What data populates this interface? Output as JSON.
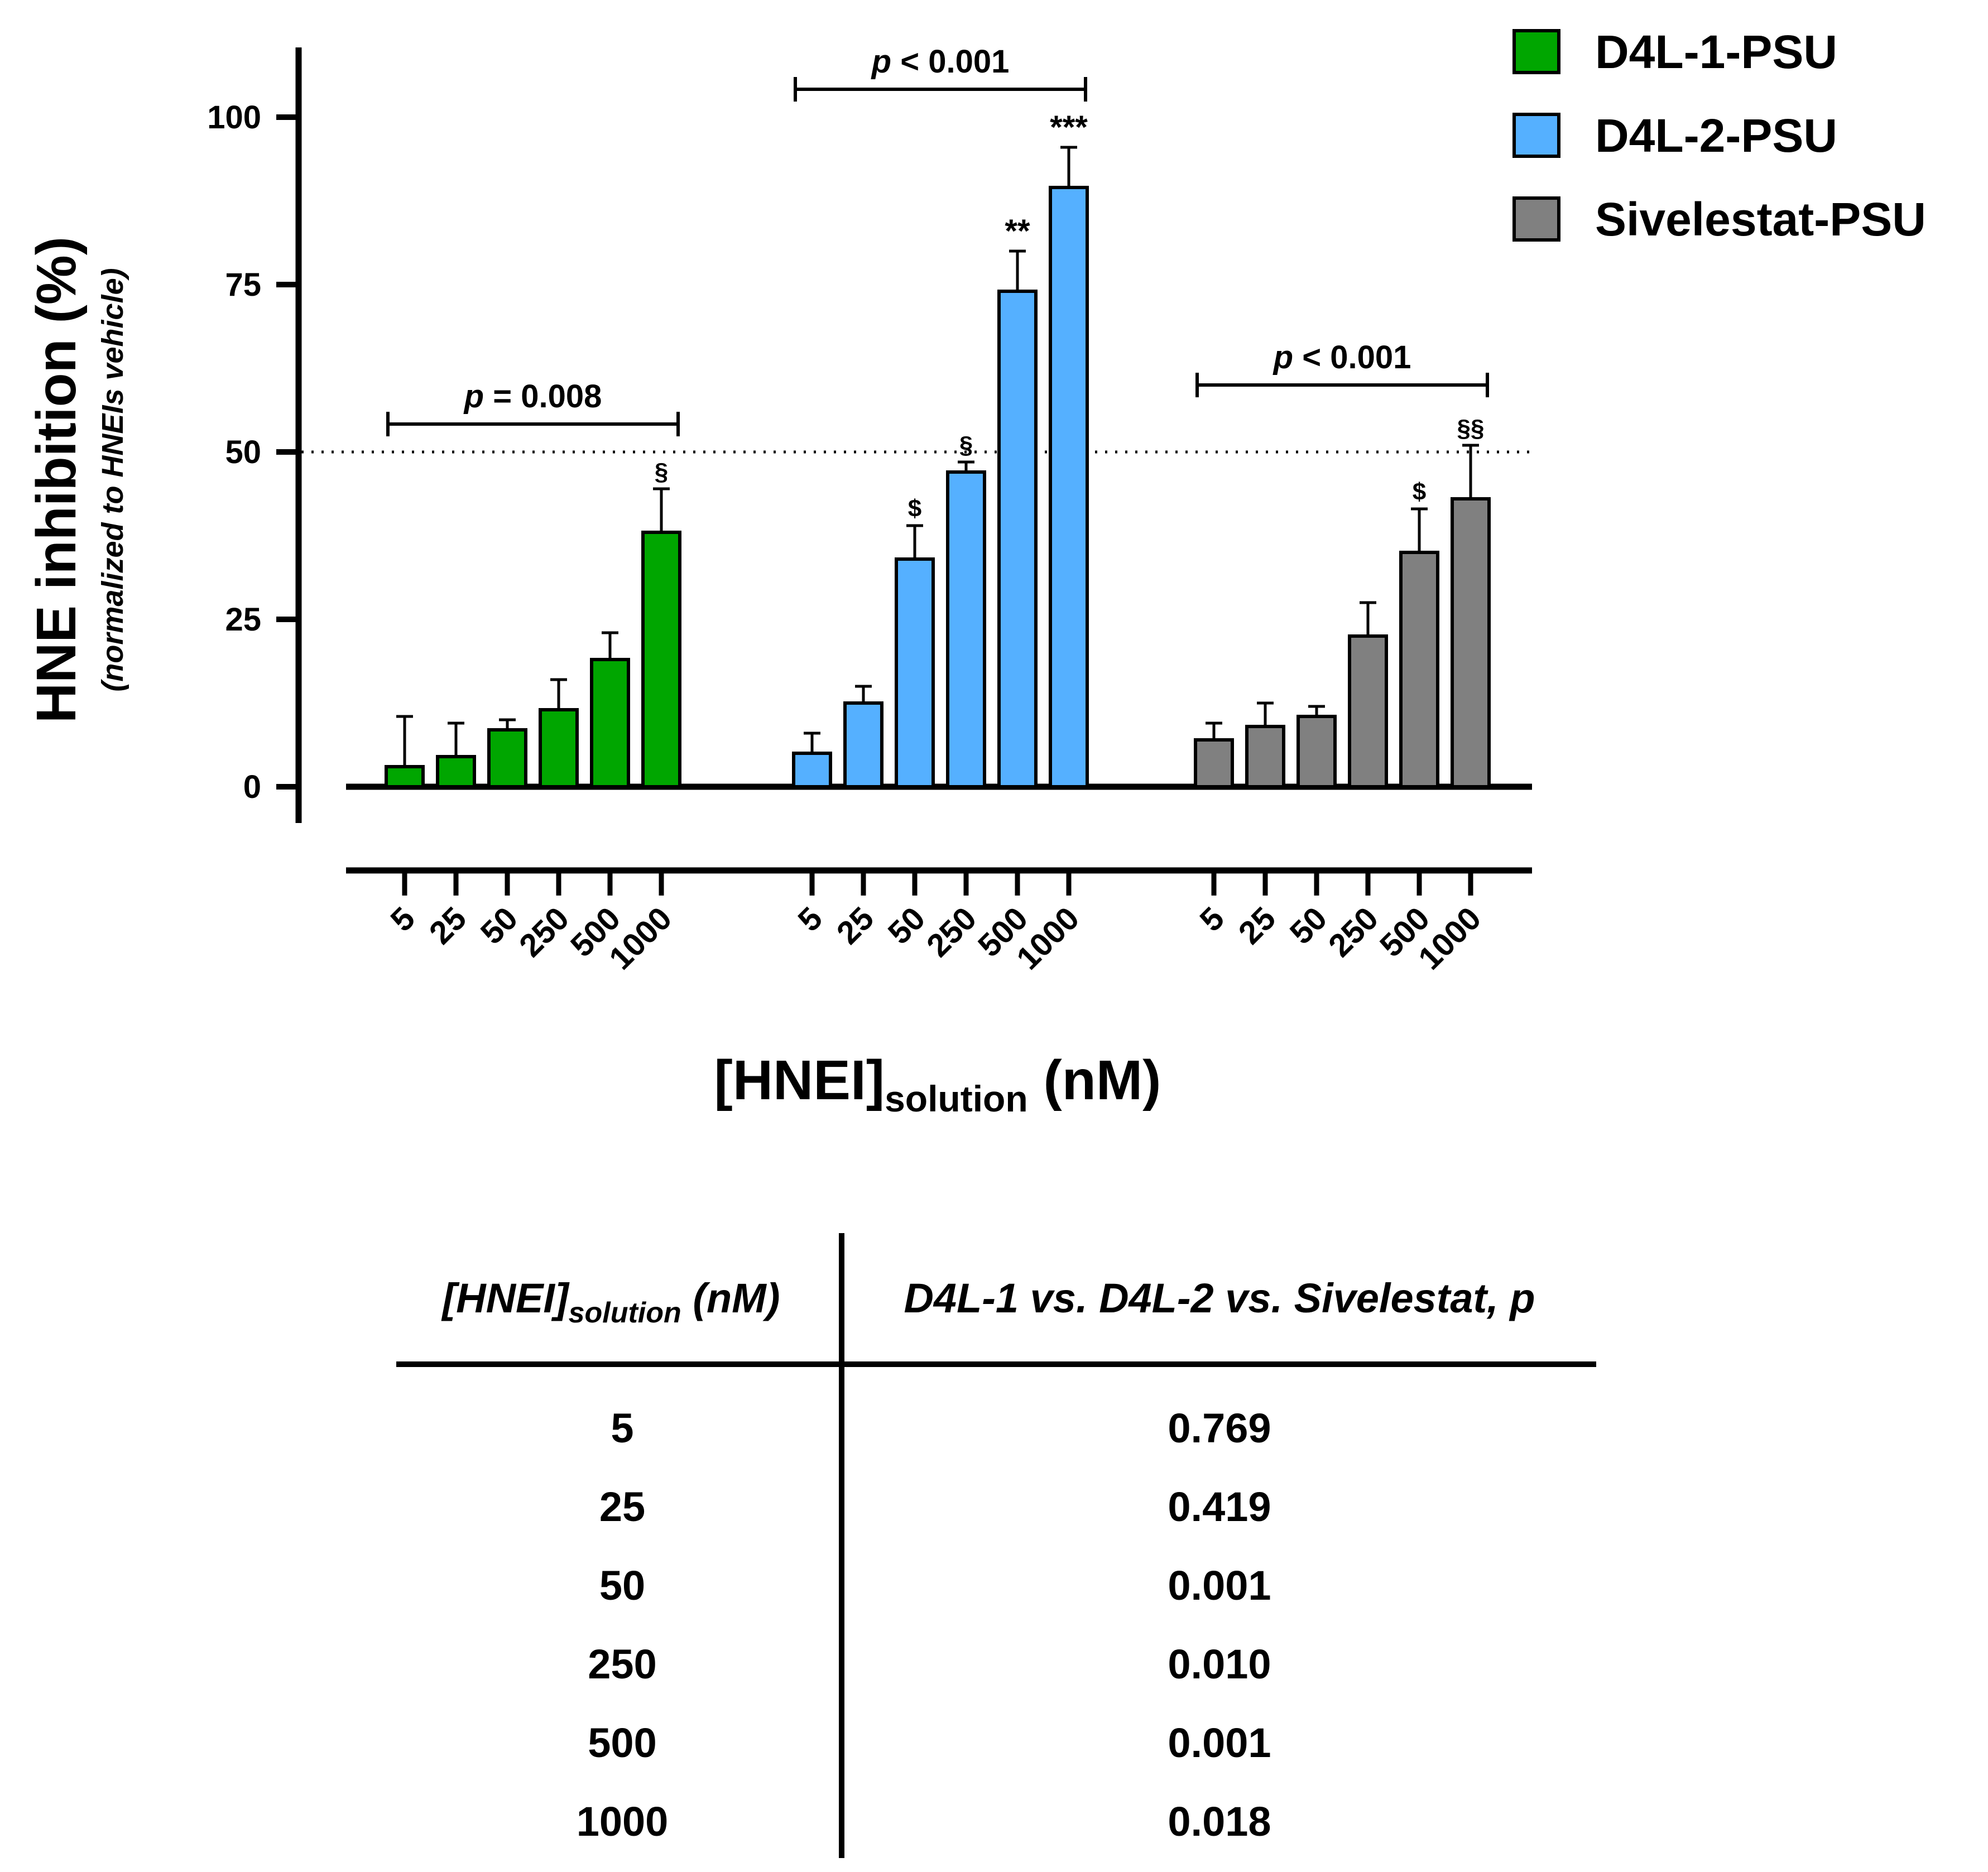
{
  "chart_data": {
    "type": "bar",
    "ylabel": "HNE inhibition (%)",
    "ylabel_sub": "(normalized to HNEIs vehicle)",
    "xlabel_main": "[HNEI]",
    "xlabel_sub": "solution",
    "xlabel_unit": " (nM)",
    "ylim": [
      0,
      110
    ],
    "yticks": [
      0,
      25,
      50,
      75,
      100
    ],
    "reference_line": 50,
    "concentrations": [
      "5",
      "25",
      "50",
      "250",
      "500",
      "1000"
    ],
    "series": [
      {
        "name": "D4L-1-PSU",
        "color": "#00A600",
        "values": [
          3,
          4.5,
          8.5,
          11.5,
          19,
          38
        ],
        "errors": [
          7.5,
          5,
          1.5,
          4.5,
          4,
          6.5
        ],
        "annotations": [
          "",
          "",
          "",
          "",
          "",
          "§"
        ],
        "bracket_p": "p",
        "bracket_text": " = 0.008"
      },
      {
        "name": "D4L-2-PSU",
        "color": "#55B0FF",
        "values": [
          5,
          12.5,
          34,
          47,
          74,
          89.5
        ],
        "errors": [
          3,
          2.5,
          5,
          1.5,
          6,
          6
        ],
        "annotations": [
          "",
          "",
          "$",
          "§",
          "**",
          "***"
        ],
        "bracket_p": "p",
        "bracket_text": " < 0.001"
      },
      {
        "name": "Sivelestat-PSU",
        "color": "#808080",
        "values": [
          7,
          9,
          10.5,
          22.5,
          35,
          43
        ],
        "errors": [
          2.5,
          3.5,
          1.5,
          5,
          6.5,
          8
        ],
        "annotations": [
          "",
          "",
          "",
          "",
          "$",
          "§§"
        ],
        "bracket_p": "p",
        "bracket_text": " < 0.001"
      }
    ]
  },
  "table": {
    "header_col1_main": "[HNEI]",
    "header_col1_sub": "solution",
    "header_col1_unit": " (nM)",
    "header_col2": "D4L-1 vs. D4L-2 vs. Sivelestat, p",
    "rows": [
      {
        "concentration": "5",
        "p": "0.769"
      },
      {
        "concentration": "25",
        "p": "0.419"
      },
      {
        "concentration": "50",
        "p": "0.001"
      },
      {
        "concentration": "250",
        "p": "0.010"
      },
      {
        "concentration": "500",
        "p": "0.001"
      },
      {
        "concentration": "1000",
        "p": "0.018"
      }
    ]
  }
}
